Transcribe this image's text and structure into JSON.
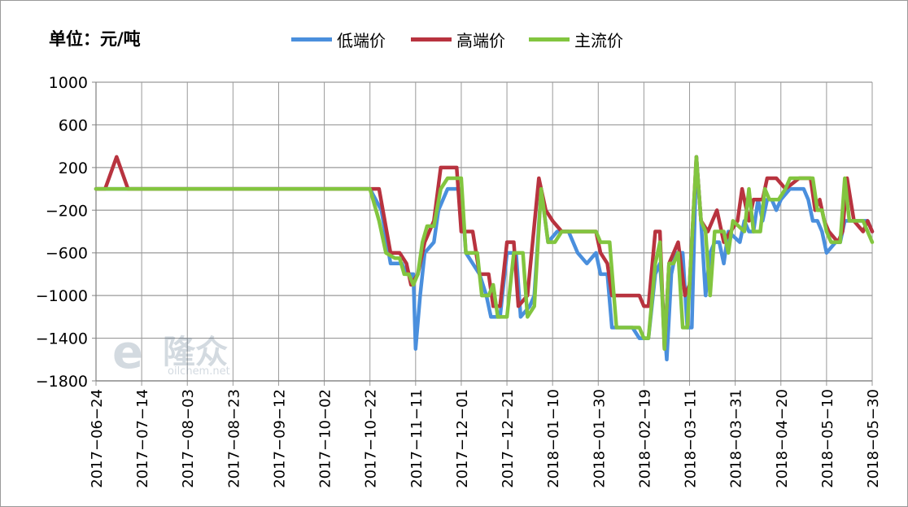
{
  "chart_data": {
    "type": "line",
    "unit_label": "单位：元/吨",
    "ylim": [
      -1800,
      1000
    ],
    "y_ticks": [
      1000,
      600,
      200,
      -200,
      -600,
      -1000,
      -1400,
      -1800
    ],
    "x_tick_labels": [
      "2017-06-24",
      "2017-07-14",
      "2017-08-03",
      "2017-08-23",
      "2017-09-12",
      "2017-10-02",
      "2017-10-22",
      "2017-11-11",
      "2017-12-01",
      "2017-12-21",
      "2018-01-10",
      "2018-01-30",
      "2018-02-19",
      "2018-03-11",
      "2018-03-31",
      "2018-04-20",
      "2018-05-10",
      "2018-05-30"
    ],
    "grid": true,
    "legend_position": "top",
    "watermark": {
      "brand": "隆众",
      "url": "oilchem.net"
    },
    "series": [
      {
        "name": "低端价",
        "color": "#4a8fdd",
        "points": [
          [
            "2017-06-24",
            0
          ],
          [
            "2017-10-22",
            0
          ],
          [
            "2017-10-27",
            -200
          ],
          [
            "2017-10-31",
            -700
          ],
          [
            "2017-11-05",
            -700
          ],
          [
            "2017-11-07",
            -800
          ],
          [
            "2017-11-10",
            -800
          ],
          [
            "2017-11-11",
            -1500
          ],
          [
            "2017-11-13",
            -1000
          ],
          [
            "2017-11-15",
            -600
          ],
          [
            "2017-11-19",
            -500
          ],
          [
            "2017-11-21",
            -200
          ],
          [
            "2017-11-25",
            0
          ],
          [
            "2017-12-01",
            0
          ],
          [
            "2017-12-03",
            -600
          ],
          [
            "2017-12-09",
            -800
          ],
          [
            "2017-12-12",
            -1000
          ],
          [
            "2017-12-14",
            -1200
          ],
          [
            "2017-12-18",
            -1200
          ],
          [
            "2017-12-21",
            -600
          ],
          [
            "2017-12-25",
            -600
          ],
          [
            "2017-12-27",
            -1200
          ],
          [
            "2017-12-31",
            -1100
          ],
          [
            "2018-01-02",
            -1000
          ],
          [
            "2018-01-05",
            0
          ],
          [
            "2018-01-08",
            -500
          ],
          [
            "2018-01-12",
            -400
          ],
          [
            "2018-01-17",
            -400
          ],
          [
            "2018-01-21",
            -600
          ],
          [
            "2018-01-25",
            -700
          ],
          [
            "2018-01-29",
            -600
          ],
          [
            "2018-01-31",
            -800
          ],
          [
            "2018-02-03",
            -800
          ],
          [
            "2018-02-05",
            -1300
          ],
          [
            "2018-02-14",
            -1300
          ],
          [
            "2018-02-17",
            -1400
          ],
          [
            "2018-02-21",
            -1400
          ],
          [
            "2018-02-24",
            -800
          ],
          [
            "2018-02-26",
            -700
          ],
          [
            "2018-03-01",
            -1600
          ],
          [
            "2018-03-03",
            -800
          ],
          [
            "2018-03-05",
            -600
          ],
          [
            "2018-03-08",
            -600
          ],
          [
            "2018-03-10",
            -1300
          ],
          [
            "2018-03-12",
            -1300
          ],
          [
            "2018-03-14",
            300
          ],
          [
            "2018-03-16",
            -300
          ],
          [
            "2018-03-18",
            -1000
          ],
          [
            "2018-03-20",
            -600
          ],
          [
            "2018-03-22",
            -500
          ],
          [
            "2018-03-24",
            -500
          ],
          [
            "2018-03-26",
            -700
          ],
          [
            "2018-03-28",
            -400
          ],
          [
            "2018-04-02",
            -500
          ],
          [
            "2018-04-04",
            -300
          ],
          [
            "2018-04-06",
            -400
          ],
          [
            "2018-04-08",
            -400
          ],
          [
            "2018-04-10",
            -100
          ],
          [
            "2018-04-12",
            -300
          ],
          [
            "2018-04-14",
            -100
          ],
          [
            "2018-04-16",
            -100
          ],
          [
            "2018-04-18",
            -200
          ],
          [
            "2018-04-20",
            -100
          ],
          [
            "2018-04-24",
            0
          ],
          [
            "2018-04-30",
            0
          ],
          [
            "2018-05-02",
            -100
          ],
          [
            "2018-05-04",
            -300
          ],
          [
            "2018-05-06",
            -300
          ],
          [
            "2018-05-08",
            -400
          ],
          [
            "2018-05-10",
            -600
          ],
          [
            "2018-05-14",
            -500
          ],
          [
            "2018-05-16",
            -500
          ],
          [
            "2018-05-18",
            -300
          ],
          [
            "2018-05-20",
            -300
          ],
          [
            "2018-05-24",
            -300
          ],
          [
            "2018-05-28",
            -300
          ],
          [
            "2018-05-30",
            -400
          ]
        ]
      },
      {
        "name": "高端价",
        "color": "#b8333f",
        "points": [
          [
            "2017-06-24",
            0
          ],
          [
            "2017-06-28",
            0
          ],
          [
            "2017-07-03",
            300
          ],
          [
            "2017-07-08",
            0
          ],
          [
            "2017-10-20",
            0
          ],
          [
            "2017-10-26",
            0
          ],
          [
            "2017-10-31",
            -600
          ],
          [
            "2017-11-04",
            -600
          ],
          [
            "2017-11-07",
            -700
          ],
          [
            "2017-11-09",
            -900
          ],
          [
            "2017-11-12",
            -800
          ],
          [
            "2017-11-15",
            -500
          ],
          [
            "2017-11-19",
            -300
          ],
          [
            "2017-11-22",
            200
          ],
          [
            "2017-11-29",
            200
          ],
          [
            "2017-12-01",
            -400
          ],
          [
            "2017-12-06",
            -400
          ],
          [
            "2017-12-09",
            -800
          ],
          [
            "2017-12-13",
            -800
          ],
          [
            "2017-12-15",
            -1100
          ],
          [
            "2017-12-18",
            -1100
          ],
          [
            "2017-12-21",
            -500
          ],
          [
            "2017-12-24",
            -500
          ],
          [
            "2017-12-26",
            -1100
          ],
          [
            "2017-12-30",
            -1000
          ],
          [
            "2018-01-04",
            100
          ],
          [
            "2018-01-07",
            -200
          ],
          [
            "2018-01-10",
            -300
          ],
          [
            "2018-01-14",
            -400
          ],
          [
            "2018-01-29",
            -400
          ],
          [
            "2018-01-31",
            -600
          ],
          [
            "2018-02-03",
            -700
          ],
          [
            "2018-02-05",
            -1000
          ],
          [
            "2018-02-17",
            -1000
          ],
          [
            "2018-02-19",
            -1100
          ],
          [
            "2018-02-21",
            -1100
          ],
          [
            "2018-02-24",
            -400
          ],
          [
            "2018-02-26",
            -400
          ],
          [
            "2018-02-28",
            -1500
          ],
          [
            "2018-03-02",
            -700
          ],
          [
            "2018-03-04",
            -600
          ],
          [
            "2018-03-06",
            -500
          ],
          [
            "2018-03-09",
            -1000
          ],
          [
            "2018-03-11",
            -900
          ],
          [
            "2018-03-14",
            300
          ],
          [
            "2018-03-16",
            -300
          ],
          [
            "2018-03-19",
            -400
          ],
          [
            "2018-03-21",
            -300
          ],
          [
            "2018-03-23",
            -200
          ],
          [
            "2018-03-26",
            -500
          ],
          [
            "2018-03-29",
            -400
          ],
          [
            "2018-04-01",
            -300
          ],
          [
            "2018-04-03",
            0
          ],
          [
            "2018-04-06",
            -300
          ],
          [
            "2018-04-08",
            -100
          ],
          [
            "2018-04-12",
            -100
          ],
          [
            "2018-04-14",
            100
          ],
          [
            "2018-04-18",
            100
          ],
          [
            "2018-04-22",
            0
          ],
          [
            "2018-04-28",
            100
          ],
          [
            "2018-05-01",
            100
          ],
          [
            "2018-05-03",
            100
          ],
          [
            "2018-05-05",
            -200
          ],
          [
            "2018-05-07",
            -100
          ],
          [
            "2018-05-09",
            -300
          ],
          [
            "2018-05-11",
            -400
          ],
          [
            "2018-05-15",
            -500
          ],
          [
            "2018-05-17",
            -400
          ],
          [
            "2018-05-19",
            100
          ],
          [
            "2018-05-22",
            -300
          ],
          [
            "2018-05-26",
            -400
          ],
          [
            "2018-05-28",
            -300
          ],
          [
            "2018-05-30",
            -400
          ]
        ]
      },
      {
        "name": "主流价",
        "color": "#82c53f",
        "points": [
          [
            "2017-06-24",
            0
          ],
          [
            "2017-10-22",
            0
          ],
          [
            "2017-10-26",
            -300
          ],
          [
            "2017-10-29",
            -600
          ],
          [
            "2017-11-02",
            -650
          ],
          [
            "2017-11-04",
            -650
          ],
          [
            "2017-11-06",
            -800
          ],
          [
            "2017-11-08",
            -800
          ],
          [
            "2017-11-10",
            -900
          ],
          [
            "2017-11-12",
            -800
          ],
          [
            "2017-11-14",
            -500
          ],
          [
            "2017-11-16",
            -350
          ],
          [
            "2017-11-19",
            -350
          ],
          [
            "2017-11-22",
            0
          ],
          [
            "2017-11-25",
            100
          ],
          [
            "2017-12-01",
            100
          ],
          [
            "2017-12-03",
            -600
          ],
          [
            "2017-12-08",
            -600
          ],
          [
            "2017-12-10",
            -1000
          ],
          [
            "2017-12-13",
            -1000
          ],
          [
            "2017-12-15",
            -900
          ],
          [
            "2017-12-17",
            -1200
          ],
          [
            "2017-12-21",
            -1200
          ],
          [
            "2017-12-24",
            -600
          ],
          [
            "2017-12-28",
            -600
          ],
          [
            "2017-12-30",
            -1200
          ],
          [
            "2018-01-02",
            -1100
          ],
          [
            "2018-01-05",
            0
          ],
          [
            "2018-01-08",
            -500
          ],
          [
            "2018-01-11",
            -500
          ],
          [
            "2018-01-14",
            -400
          ],
          [
            "2018-01-29",
            -400
          ],
          [
            "2018-01-31",
            -500
          ],
          [
            "2018-02-04",
            -500
          ],
          [
            "2018-02-07",
            -1300
          ],
          [
            "2018-02-17",
            -1300
          ],
          [
            "2018-02-19",
            -1400
          ],
          [
            "2018-02-21",
            -1400
          ],
          [
            "2018-02-24",
            -700
          ],
          [
            "2018-02-26",
            -500
          ],
          [
            "2018-02-28",
            -1500
          ],
          [
            "2018-03-02",
            -700
          ],
          [
            "2018-03-04",
            -700
          ],
          [
            "2018-03-06",
            -600
          ],
          [
            "2018-03-08",
            -1300
          ],
          [
            "2018-03-10",
            -1300
          ],
          [
            "2018-03-14",
            300
          ],
          [
            "2018-03-16",
            -300
          ],
          [
            "2018-03-18",
            -400
          ],
          [
            "2018-03-20",
            -1000
          ],
          [
            "2018-03-22",
            -400
          ],
          [
            "2018-03-26",
            -400
          ],
          [
            "2018-03-28",
            -600
          ],
          [
            "2018-03-30",
            -300
          ],
          [
            "2018-04-04",
            -400
          ],
          [
            "2018-04-06",
            0
          ],
          [
            "2018-04-08",
            -400
          ],
          [
            "2018-04-11",
            -400
          ],
          [
            "2018-04-13",
            0
          ],
          [
            "2018-04-15",
            -100
          ],
          [
            "2018-04-19",
            -100
          ],
          [
            "2018-04-22",
            0
          ],
          [
            "2018-04-24",
            100
          ],
          [
            "2018-05-02",
            100
          ],
          [
            "2018-05-04",
            100
          ],
          [
            "2018-05-06",
            -200
          ],
          [
            "2018-05-08",
            -200
          ],
          [
            "2018-05-10",
            -400
          ],
          [
            "2018-05-12",
            -500
          ],
          [
            "2018-05-16",
            -500
          ],
          [
            "2018-05-18",
            100
          ],
          [
            "2018-05-20",
            -300
          ],
          [
            "2018-05-26",
            -300
          ],
          [
            "2018-05-28",
            -400
          ],
          [
            "2018-05-30",
            -500
          ]
        ]
      }
    ]
  }
}
